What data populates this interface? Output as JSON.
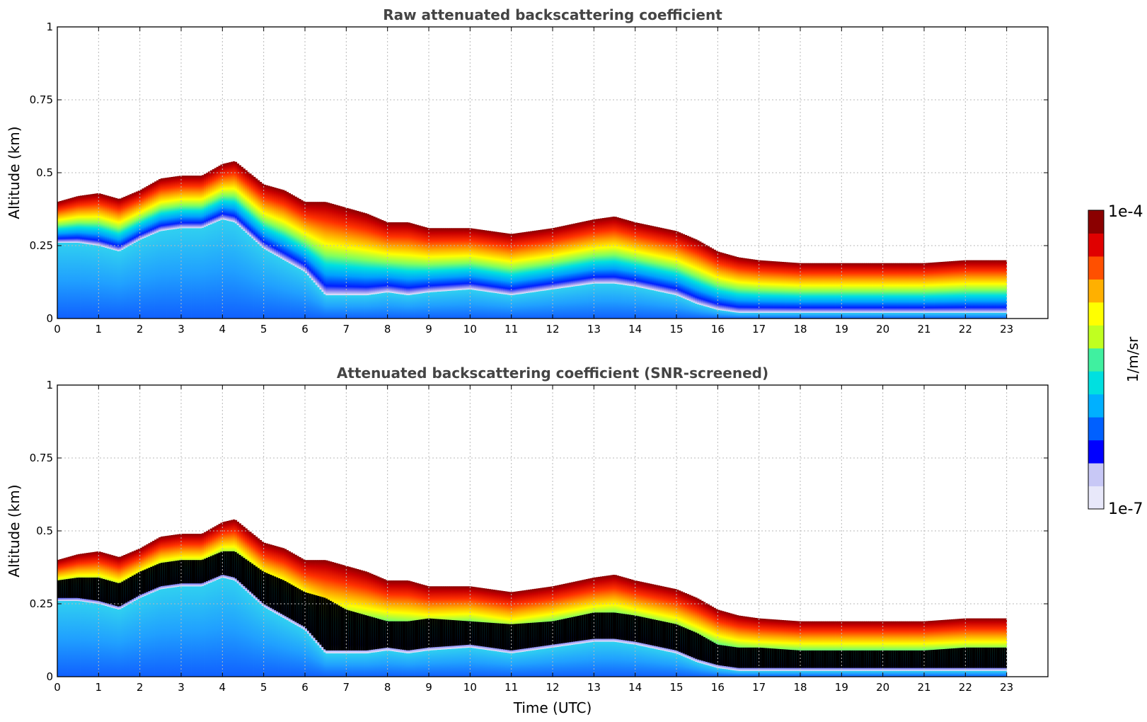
{
  "chart_data": [
    {
      "type": "heatmap",
      "title": "Raw attenuated backscattering coefficient",
      "xlabel": "",
      "ylabel": "Altitude (km)",
      "xlim": [
        0,
        24
      ],
      "ylim": [
        0,
        1
      ],
      "x_ticks": [
        "0",
        "1",
        "2",
        "3",
        "4",
        "5",
        "6",
        "7",
        "8",
        "9",
        "10",
        "11",
        "12",
        "13",
        "14",
        "15",
        "16",
        "17",
        "18",
        "19",
        "20",
        "21",
        "22",
        "23"
      ],
      "y_ticks": [
        "0",
        "0.25",
        "0.5",
        "0.75",
        "1"
      ],
      "grid": true,
      "data_end_time": 23,
      "layer_profile": {
        "time": [
          0,
          0.5,
          1,
          1.5,
          2,
          2.5,
          3,
          3.5,
          4,
          4.3,
          5,
          5.5,
          6,
          6.5,
          7,
          7.5,
          8,
          8.5,
          9,
          10,
          11,
          12,
          13,
          13.5,
          14,
          15,
          15.5,
          16,
          16.5,
          17,
          18,
          19,
          20,
          21,
          22,
          23
        ],
        "top": [
          0.38,
          0.4,
          0.41,
          0.39,
          0.42,
          0.46,
          0.47,
          0.47,
          0.51,
          0.52,
          0.44,
          0.42,
          0.38,
          0.38,
          0.36,
          0.34,
          0.31,
          0.31,
          0.29,
          0.29,
          0.27,
          0.29,
          0.32,
          0.33,
          0.31,
          0.28,
          0.25,
          0.21,
          0.19,
          0.18,
          0.17,
          0.17,
          0.17,
          0.17,
          0.18,
          0.18
        ],
        "core_top": [
          0.34,
          0.35,
          0.35,
          0.33,
          0.37,
          0.4,
          0.41,
          0.41,
          0.44,
          0.44,
          0.37,
          0.34,
          0.3,
          0.28,
          0.24,
          0.22,
          0.2,
          0.2,
          0.21,
          0.2,
          0.19,
          0.2,
          0.23,
          0.23,
          0.22,
          0.19,
          0.16,
          0.12,
          0.11,
          0.11,
          0.1,
          0.1,
          0.1,
          0.1,
          0.11,
          0.11
        ],
        "core_bottom": [
          0.26,
          0.26,
          0.25,
          0.23,
          0.27,
          0.3,
          0.31,
          0.31,
          0.34,
          0.33,
          0.24,
          0.2,
          0.16,
          0.08,
          0.08,
          0.08,
          0.09,
          0.08,
          0.09,
          0.1,
          0.08,
          0.1,
          0.12,
          0.12,
          0.11,
          0.08,
          0.05,
          0.03,
          0.02,
          0.02,
          0.02,
          0.02,
          0.02,
          0.02,
          0.02,
          0.02
        ]
      }
    },
    {
      "type": "heatmap",
      "title": "Attenuated backscattering coefficient (SNR-screened)",
      "xlabel": "Time (UTC)",
      "ylabel": "Altitude (km)",
      "xlim": [
        0,
        24
      ],
      "ylim": [
        0,
        1
      ],
      "x_ticks": [
        "0",
        "1",
        "2",
        "3",
        "4",
        "5",
        "6",
        "7",
        "8",
        "9",
        "10",
        "11",
        "12",
        "13",
        "14",
        "15",
        "16",
        "17",
        "18",
        "19",
        "20",
        "21",
        "22",
        "23"
      ],
      "y_ticks": [
        "0",
        "0.25",
        "0.5",
        "0.75",
        "1"
      ],
      "grid": true,
      "screened_core_color": "#000000"
    }
  ],
  "colorbar": {
    "label": "1/m/sr",
    "max_label": "1e-4",
    "min_label": "1e-7",
    "scale": "log",
    "colors": [
      "#e8e8fa",
      "#c8c8f6",
      "#0000ff",
      "#0060ff",
      "#00b0ff",
      "#00e0e0",
      "#40f0a0",
      "#c0ff20",
      "#ffff00",
      "#ffb000",
      "#ff5000",
      "#e00000",
      "#8b0000"
    ]
  }
}
